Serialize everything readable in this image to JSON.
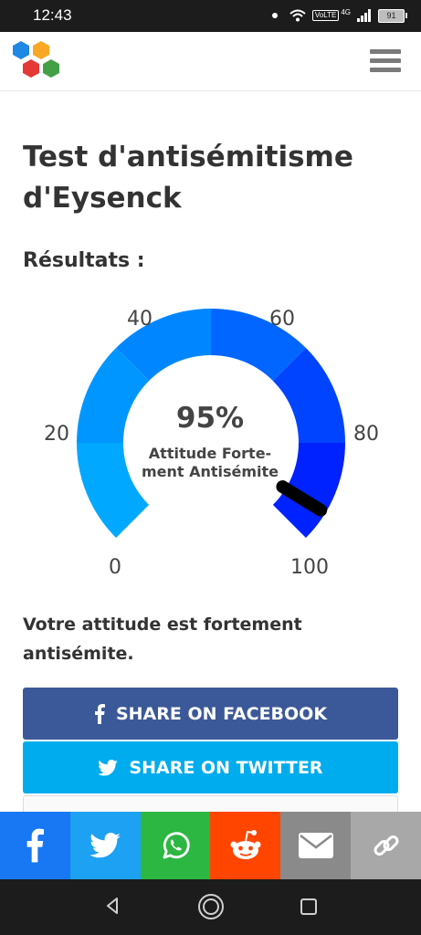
{
  "status": {
    "time": "12:43",
    "network": "4G",
    "volte": "VoLTE",
    "battery": "91"
  },
  "header": {
    "logo": "hexagon-cluster-logo",
    "menu_icon": "hamburger-menu-icon"
  },
  "page": {
    "title": "Test d'antisémitisme d'Eysenck",
    "results_label": "Résultats :"
  },
  "gauge": {
    "value_percent": 95,
    "value_label": "95%",
    "caption_line1": "Attitude Forte-",
    "caption_line2": "ment Antisémite",
    "ticks": [
      "0",
      "20",
      "40",
      "60",
      "80",
      "100"
    ],
    "segment_colors": [
      "#00a8ff",
      "#0096ff",
      "#0087ff",
      "#0066ff",
      "#0044ff",
      "#0022ff"
    ],
    "needle_color": "#000000"
  },
  "result": {
    "text": "Votre attitude est fortement antisémite."
  },
  "share": {
    "facebook_label": "SHARE ON FACEBOOK",
    "twitter_label": "SHARE ON TWITTER",
    "facebook_color": "#3b5998",
    "twitter_color": "#00aced"
  },
  "bottom_bar": {
    "items": [
      {
        "icon": "facebook-icon",
        "color": "#1877f2"
      },
      {
        "icon": "twitter-icon",
        "color": "#1da1f2"
      },
      {
        "icon": "whatsapp-icon",
        "color": "#2cb742"
      },
      {
        "icon": "reddit-icon",
        "color": "#ff4500"
      },
      {
        "icon": "email-icon",
        "color": "#8a8a8a"
      },
      {
        "icon": "link-icon",
        "color": "#a8a8a8"
      }
    ]
  },
  "nav": {
    "back": "back-icon",
    "home": "home-icon",
    "recents": "recents-icon"
  }
}
